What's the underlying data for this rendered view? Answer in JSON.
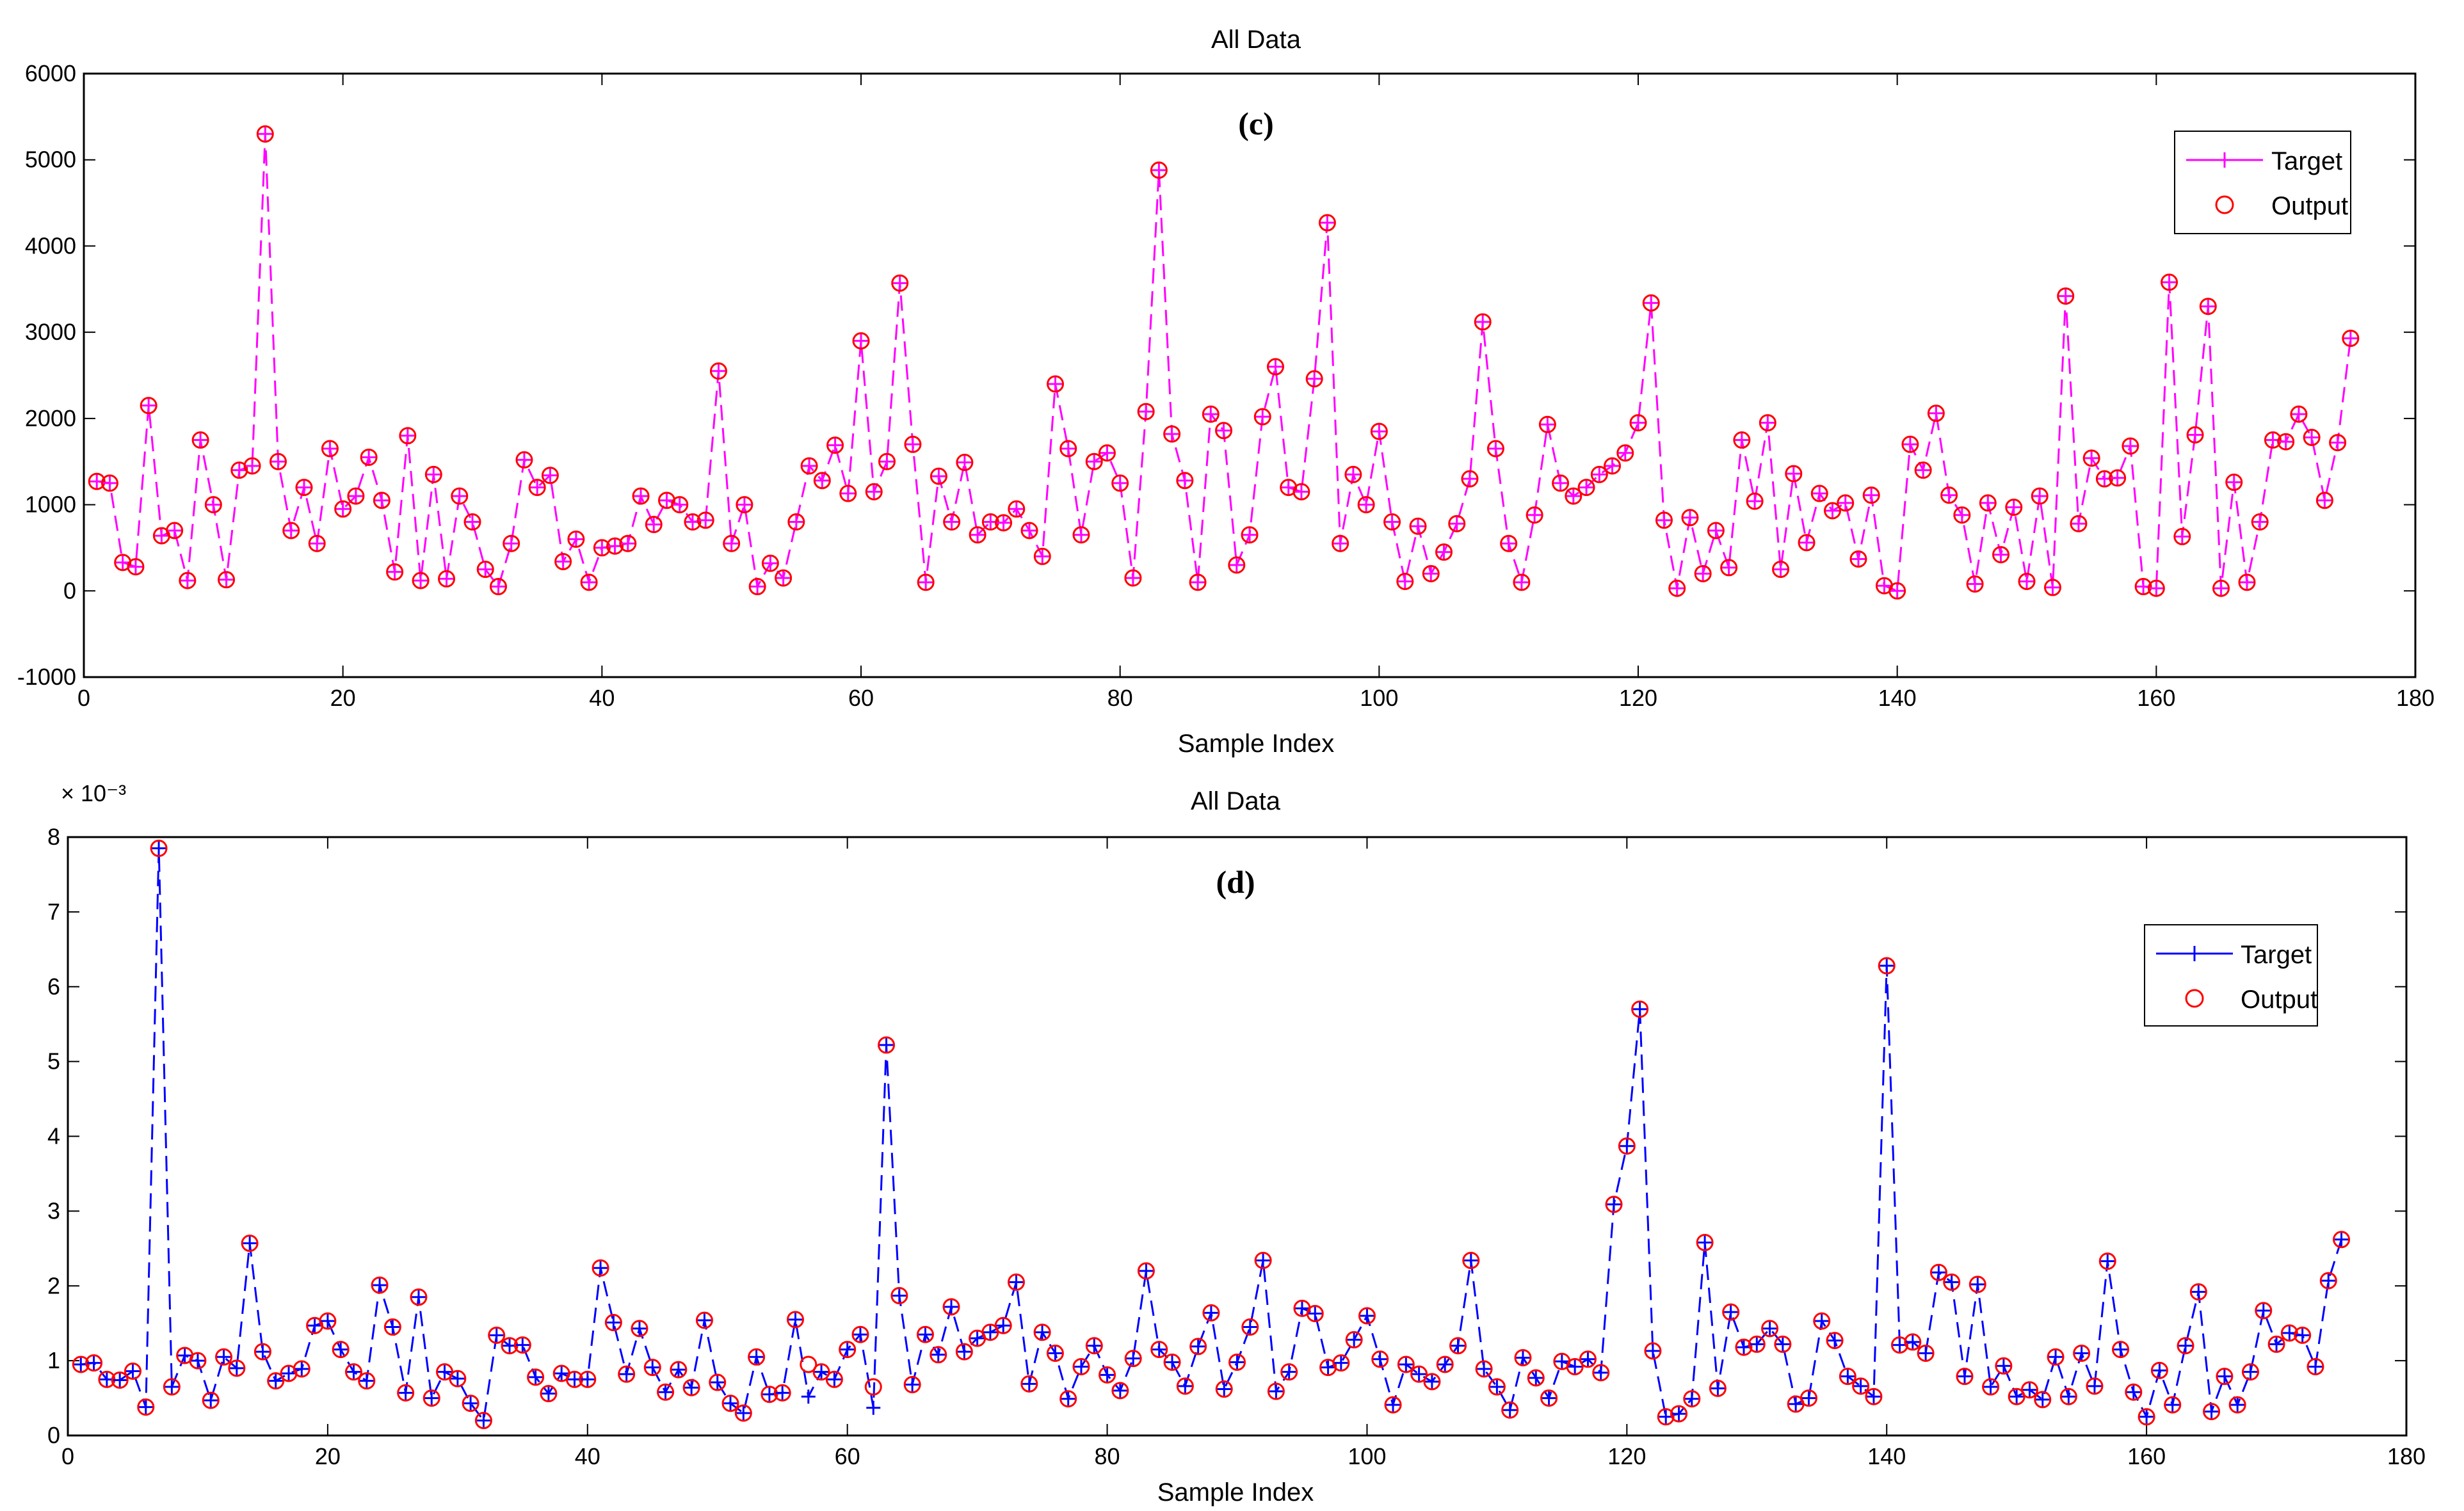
{
  "chart_data": [
    {
      "type": "line",
      "panel": "(c)",
      "title": "All Data",
      "xlabel": "Sample Index",
      "ylabel": "",
      "xlim": [
        0,
        180
      ],
      "ylim": [
        -1000,
        6000
      ],
      "xticks": [
        0,
        20,
        40,
        60,
        80,
        100,
        120,
        140,
        160,
        180
      ],
      "yticks": [
        -1000,
        0,
        1000,
        2000,
        3000,
        4000,
        5000,
        6000
      ],
      "color": "#ff00ff",
      "legend": {
        "position": "top-right",
        "target_label": "Target",
        "output_label": "Output"
      },
      "series": [
        {
          "name": "Target",
          "marker": "+",
          "linestyle": "dashed",
          "x_start": 1,
          "values": [
            1270,
            1250,
            330,
            280,
            2150,
            640,
            700,
            120,
            1750,
            1000,
            130,
            1400,
            1450,
            5300,
            1500,
            700,
            1200,
            550,
            1650,
            950,
            1100,
            1550,
            1050,
            220,
            1800,
            120,
            1350,
            140,
            1100,
            800,
            250,
            50,
            550,
            1520,
            1200,
            1340,
            340,
            600,
            100,
            500,
            520,
            550,
            1100,
            770,
            1050,
            1000,
            800,
            820,
            2550,
            550,
            1000,
            50,
            320,
            150,
            800,
            1450,
            1280,
            1690,
            1130,
            2900,
            1150,
            1500,
            3570,
            1700,
            100,
            1330,
            800,
            1490,
            650,
            800,
            790,
            950,
            700,
            400,
            2400,
            1650,
            650,
            1500,
            1600,
            1250,
            150,
            2080,
            4880,
            1820,
            1280,
            100,
            2050,
            1860,
            300,
            650,
            2020,
            2600,
            1200,
            1150,
            2460,
            4270,
            550,
            1350,
            1000,
            1850,
            800,
            110,
            750,
            200,
            450,
            780,
            1300,
            3120,
            1650,
            550,
            100,
            880,
            1930,
            1250,
            1100,
            1200,
            1350,
            1450,
            1600,
            1950,
            3340,
            820,
            30,
            850,
            200,
            700,
            270,
            1750,
            1040,
            1950,
            250,
            1360,
            560,
            1130,
            930,
            1020,
            370,
            1110,
            60,
            0,
            1700,
            1400,
            2060,
            1110,
            880,
            80,
            1020,
            420,
            970,
            110,
            1100,
            40,
            3420,
            780,
            1540,
            1300,
            1310,
            1680,
            50,
            30,
            3580,
            630,
            1810,
            3300,
            30,
            1260,
            100,
            800,
            1750,
            1730,
            2050,
            1780,
            1050,
            1720,
            2930
          ]
        },
        {
          "name": "Output",
          "marker": "o",
          "same_as": "Target"
        }
      ]
    },
    {
      "type": "line",
      "panel": "(d)",
      "title": "All Data",
      "xlabel": "Sample Index",
      "ylabel": "",
      "scale_label": "× 10⁻³",
      "xlim": [
        0,
        180
      ],
      "ylim": [
        0,
        8
      ],
      "xticks": [
        0,
        20,
        40,
        60,
        80,
        100,
        120,
        140,
        160,
        180
      ],
      "yticks": [
        0,
        1,
        2,
        3,
        4,
        5,
        6,
        7,
        8
      ],
      "color": "#0000ff",
      "legend": {
        "position": "top-right",
        "target_label": "Target",
        "output_label": "Output"
      },
      "series": [
        {
          "name": "Target",
          "marker": "+",
          "linestyle": "dashed",
          "x_start": 1,
          "values": [
            0.95,
            0.97,
            0.75,
            0.74,
            0.86,
            0.38,
            7.85,
            0.65,
            1.07,
            1.0,
            0.47,
            1.05,
            0.9,
            2.57,
            1.12,
            0.73,
            0.83,
            0.89,
            1.47,
            1.53,
            1.15,
            0.85,
            0.73,
            2.01,
            1.45,
            0.57,
            1.85,
            0.5,
            0.85,
            0.76,
            0.43,
            0.2,
            1.34,
            1.2,
            1.21,
            0.78,
            0.56,
            0.83,
            0.75,
            0.75,
            2.24,
            1.51,
            0.82,
            1.43,
            0.91,
            0.58,
            0.88,
            0.64,
            1.54,
            0.71,
            0.43,
            0.3,
            1.05,
            0.55,
            0.57,
            1.55,
            0.52,
            0.85,
            0.75,
            1.15,
            1.35,
            0.37,
            5.22,
            1.87,
            0.68,
            1.35,
            1.08,
            1.72,
            1.12,
            1.3,
            1.38,
            1.47,
            2.05,
            0.69,
            1.38,
            1.1,
            0.49,
            0.92,
            1.2,
            0.81,
            0.6,
            1.03,
            2.2,
            1.15,
            0.98,
            0.66,
            1.19,
            1.64,
            0.62,
            0.98,
            1.45,
            2.34,
            0.59,
            0.85,
            1.7,
            1.63,
            0.91,
            0.97,
            1.28,
            1.6,
            1.02,
            0.41,
            0.95,
            0.82,
            0.72,
            0.95,
            1.2,
            2.34,
            0.89,
            0.65,
            0.34,
            1.04,
            0.77,
            0.5,
            0.99,
            0.92,
            1.02,
            0.84,
            3.09,
            3.87,
            5.7,
            1.13,
            0.25,
            0.29,
            0.49,
            2.58,
            0.63,
            1.65,
            1.18,
            1.22,
            1.43,
            1.22,
            0.42,
            0.5,
            1.53,
            1.27,
            0.79,
            0.66,
            0.52,
            6.28,
            1.21,
            1.25,
            1.1,
            2.18,
            2.05,
            0.79,
            2.02,
            0.65,
            0.93,
            0.52,
            0.61,
            0.48,
            1.05,
            0.52,
            1.1,
            0.66,
            2.33,
            1.15,
            0.58,
            0.25,
            0.87,
            0.41,
            1.2,
            1.92,
            0.32,
            0.79,
            0.41,
            0.85,
            1.67,
            1.22,
            1.37,
            1.34,
            0.92,
            2.07,
            2.62
          ]
        },
        {
          "name": "Output",
          "marker": "o",
          "same_as": "Target",
          "deviations": [
            {
              "x": 57,
              "value": 0.95
            },
            {
              "x": 62,
              "value": 0.65
            }
          ]
        }
      ]
    }
  ]
}
